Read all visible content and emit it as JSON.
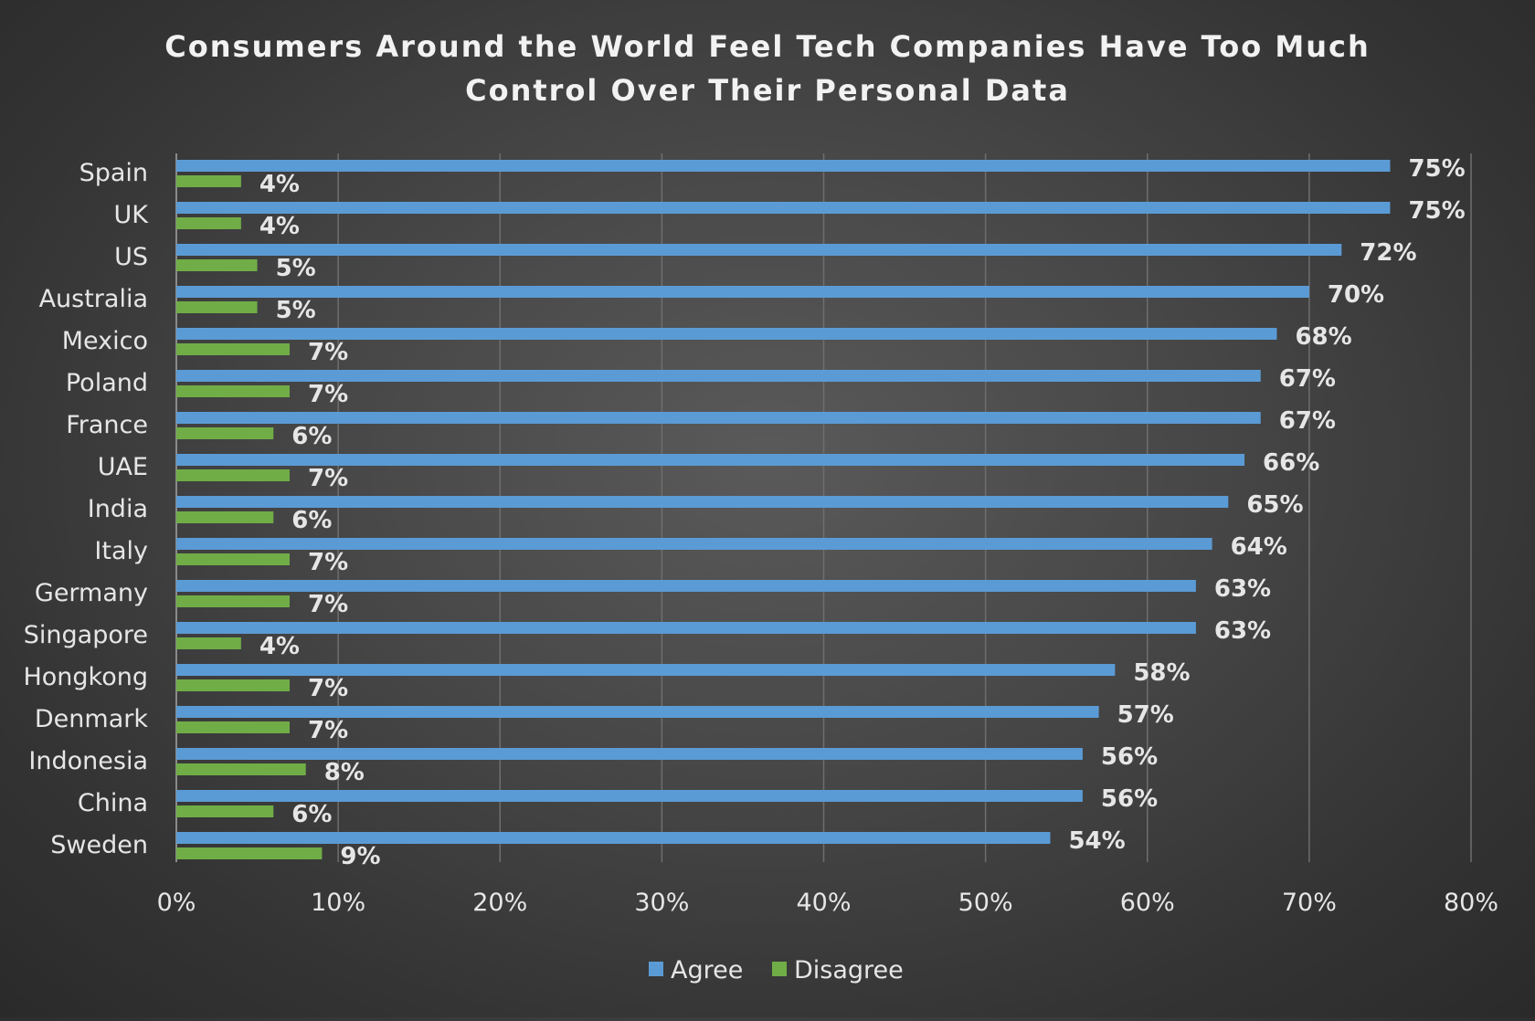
{
  "chart_data": {
    "type": "bar",
    "orientation": "horizontal",
    "title": "Consumers Around the World Feel Tech Companies Have Too Much Control Over Their Personal Data",
    "title_lines": [
      "Consumers Around the World Feel Tech Companies Have Too Much",
      "Control Over Their Personal Data"
    ],
    "categories": [
      "Spain",
      "UK",
      "US",
      "Australia",
      "Mexico",
      "Poland",
      "France",
      "UAE",
      "India",
      "Italy",
      "Germany",
      "Singapore",
      "Hongkong",
      "Denmark",
      "Indonesia",
      "China",
      "Sweden"
    ],
    "series": [
      {
        "name": "Agree",
        "color": "#5b9bd5",
        "values": [
          75,
          75,
          72,
          70,
          68,
          67,
          67,
          66,
          65,
          64,
          63,
          63,
          58,
          57,
          56,
          56,
          54
        ],
        "labels": [
          "75%",
          "75%",
          "72%",
          "70%",
          "68%",
          "67%",
          "67%",
          "66%",
          "65%",
          "64%",
          "63%",
          "63%",
          "58%",
          "57%",
          "56%",
          "56%",
          "54%"
        ]
      },
      {
        "name": "Disagree",
        "color": "#70ad47",
        "values": [
          4,
          4,
          5,
          5,
          7,
          7,
          6,
          7,
          6,
          7,
          7,
          4,
          7,
          7,
          8,
          6,
          9
        ],
        "labels": [
          "4%",
          "4%",
          "5%",
          "5%",
          "7%",
          "7%",
          "6%",
          "7%",
          "6%",
          "7%",
          "7%",
          "4%",
          "7%",
          "7%",
          "8%",
          "6%",
          "9%"
        ]
      }
    ],
    "x_ticks": [
      0,
      10,
      20,
      30,
      40,
      50,
      60,
      70,
      80
    ],
    "x_tick_labels": [
      "0%",
      "10%",
      "20%",
      "30%",
      "40%",
      "50%",
      "60%",
      "70%",
      "80%"
    ],
    "xlim": [
      0,
      80
    ],
    "xlabel": "",
    "ylabel": "",
    "grid": true,
    "legend_position": "bottom-center"
  }
}
